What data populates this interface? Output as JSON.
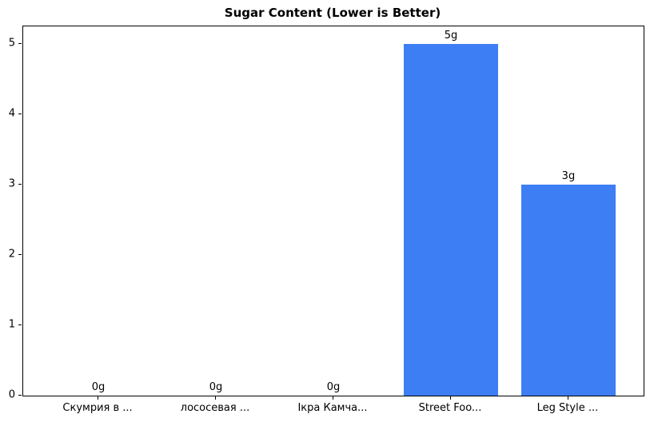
{
  "chart_data": {
    "type": "bar",
    "title": "Sugar Content (Lower is Better)",
    "categories": [
      "Скумрия в ...",
      "лососевая ...",
      "Ікра Камча...",
      "Street Foo...",
      "Leg Style ..."
    ],
    "values": [
      0,
      0,
      0,
      5,
      3
    ],
    "bar_labels": [
      "0g",
      "0g",
      "0g",
      "5g",
      "3g"
    ],
    "xlabel": "",
    "ylabel": "",
    "yticks": [
      0,
      1,
      2,
      3,
      4,
      5
    ],
    "ylim": [
      0,
      5.25
    ],
    "xlim": [
      -0.64,
      4.64
    ],
    "bar_rel_width": 0.8,
    "grid": false,
    "legend_position": "none",
    "bar_color": "#3d7ef4",
    "axis_color": "#000000",
    "text_color": "#000000",
    "background_color": "#ffffff"
  }
}
